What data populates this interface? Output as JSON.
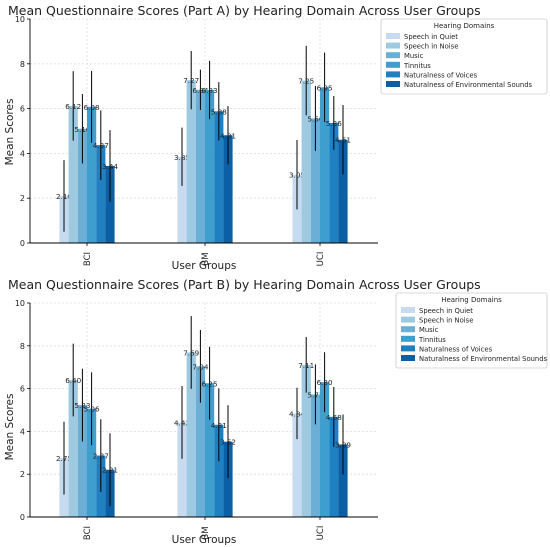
{
  "colors": [
    "#c6dbef",
    "#9ecae1",
    "#6baed6",
    "#3e9fcf",
    "#1f7fc0",
    "#0b5fa5"
  ],
  "chart_data": [
    {
      "type": "bar",
      "title": "Mean Questionnaire Scores (Part A) by Hearing Domain Across User Groups",
      "xlabel": "User Groups",
      "ylabel": "Mean Scores",
      "ylim": [
        0,
        10
      ],
      "yticks": [
        "0",
        "2",
        "4",
        "6",
        "8",
        "10"
      ],
      "grid": true,
      "legend_title": "Hearing Domains",
      "legend_position": "outside-right-top",
      "categories": [
        "BCI",
        "BM",
        "UCI"
      ],
      "series": [
        {
          "name": "Speech in Quiet",
          "values": [
            2.1,
            3.85,
            3.05
          ],
          "errors": [
            1.6,
            1.3,
            1.55
          ]
        },
        {
          "name": "Speech in Noise",
          "values": [
            6.12,
            7.27,
            7.25
          ],
          "errors": [
            1.55,
            1.3,
            1.55
          ]
        },
        {
          "name": "Music",
          "values": [
            5.1,
            6.84,
            5.56
          ],
          "errors": [
            1.55,
            0.9,
            1.45
          ]
        },
        {
          "name": "Tinnitus",
          "values": [
            6.08,
            6.83,
            6.95
          ],
          "errors": [
            1.6,
            1.3,
            1.55
          ]
        },
        {
          "name": "Naturalness of Voices",
          "values": [
            4.37,
            5.88,
            5.36
          ],
          "errors": [
            1.55,
            1.3,
            1.2
          ]
        },
        {
          "name": "Naturalness of Environmental Sounds",
          "values": [
            3.44,
            4.81,
            4.61
          ],
          "errors": [
            1.6,
            1.3,
            1.55
          ]
        }
      ],
      "value_labels": [
        [
          "2.10",
          "6.12",
          "5.10",
          "6.08",
          "4.37",
          "3.44"
        ],
        [
          "3.85",
          "7.27",
          "6.84",
          "6.83",
          "5.88",
          "4.81"
        ],
        [
          "3.05",
          "7.25",
          "5.56",
          "6.95",
          "5.36",
          "4.61"
        ]
      ]
    },
    {
      "type": "bar",
      "title": "Mean Questionnaire Scores (Part B) by Hearing Domain Across User Groups",
      "xlabel": "User Groups",
      "ylabel": "Mean Scores",
      "ylim": [
        0,
        10
      ],
      "yticks": [
        "0",
        "2",
        "4",
        "6",
        "8",
        "10"
      ],
      "grid": true,
      "legend_title": "Hearing Domains",
      "legend_position": "outside-right-top",
      "categories": [
        "BCI",
        "BM",
        "UCI"
      ],
      "series": [
        {
          "name": "Speech in Quiet",
          "values": [
            2.75,
            4.42,
            4.84
          ],
          "errors": [
            1.7,
            1.7,
            1.2
          ]
        },
        {
          "name": "Speech in Noise",
          "values": [
            6.4,
            7.69,
            7.11
          ],
          "errors": [
            1.7,
            1.7,
            1.3
          ]
        },
        {
          "name": "Music",
          "values": [
            5.23,
            7.04,
            5.73
          ],
          "errors": [
            1.7,
            1.7,
            1.4
          ]
        },
        {
          "name": "Tinnitus",
          "values": [
            5.06,
            6.25,
            6.3
          ],
          "errors": [
            1.7,
            1.7,
            1.4
          ]
        },
        {
          "name": "Naturalness of Voices",
          "values": [
            2.87,
            4.31,
            4.68
          ],
          "errors": [
            1.7,
            1.7,
            1.4
          ]
        },
        {
          "name": "Naturalness of Environmental Sounds",
          "values": [
            2.21,
            3.52,
            3.39
          ],
          "errors": [
            1.7,
            1.7,
            1.4
          ]
        }
      ],
      "value_labels": [
        [
          "2.75",
          "6.40",
          "5.23",
          "5.06",
          "2.87",
          "2.21"
        ],
        [
          "4.42",
          "7.69",
          "7.04",
          "6.25",
          "4.31",
          "3.52"
        ],
        [
          "4.84",
          "7.11",
          "5.73",
          "6.30",
          "4.68",
          "3.39"
        ]
      ]
    }
  ]
}
